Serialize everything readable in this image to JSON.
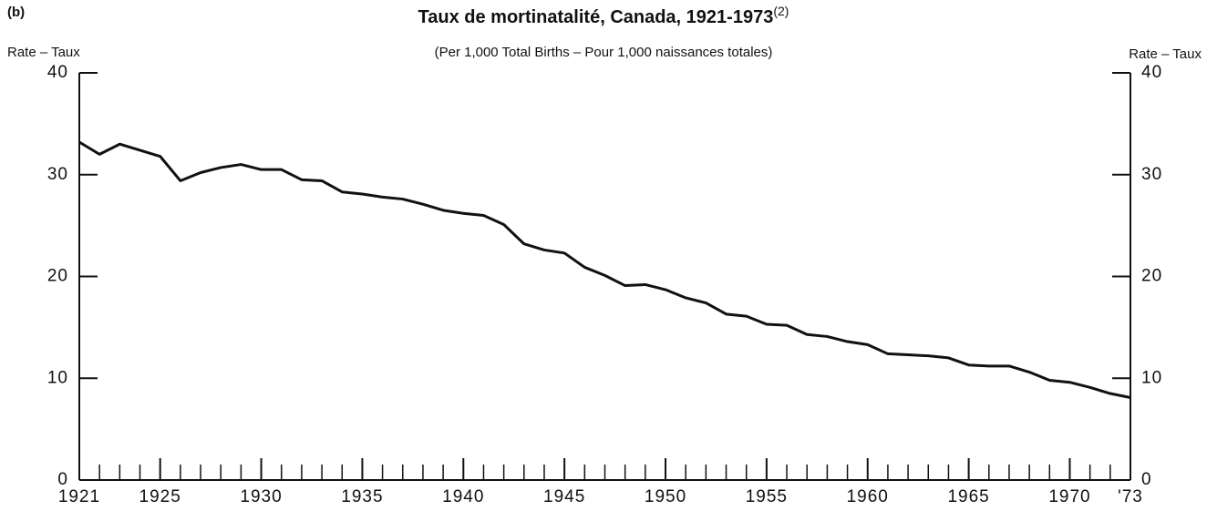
{
  "chart_data": {
    "type": "line",
    "panel": "(b)",
    "title": "Taux de mortinatalité, Canada, 1921-1973",
    "title_note": "(2)",
    "subtitle": "(Per 1,000 Total Births – Pour 1,000 naissances totales)",
    "y_label": "Rate – Taux",
    "y2_label": "Rate – Taux",
    "x": [
      1921,
      1922,
      1923,
      1924,
      1925,
      1926,
      1927,
      1928,
      1929,
      1930,
      1931,
      1932,
      1933,
      1934,
      1935,
      1936,
      1937,
      1938,
      1939,
      1940,
      1941,
      1942,
      1943,
      1944,
      1945,
      1946,
      1947,
      1948,
      1949,
      1950,
      1951,
      1952,
      1953,
      1954,
      1955,
      1956,
      1957,
      1958,
      1959,
      1960,
      1961,
      1962,
      1963,
      1964,
      1965,
      1966,
      1967,
      1968,
      1969,
      1970,
      1971,
      1972,
      1973
    ],
    "series": [
      {
        "color": "#111111",
        "values": [
          33.2,
          32.0,
          33.0,
          32.4,
          31.8,
          29.4,
          30.2,
          30.7,
          31.0,
          30.5,
          30.5,
          29.5,
          29.4,
          28.3,
          28.1,
          27.8,
          27.6,
          27.1,
          26.5,
          26.2,
          26.0,
          25.1,
          23.2,
          22.6,
          22.3,
          20.9,
          20.1,
          19.1,
          19.2,
          18.7,
          17.9,
          17.4,
          16.3,
          16.1,
          15.3,
          15.2,
          14.3,
          14.1,
          13.6,
          13.3,
          12.4,
          12.3,
          12.2,
          12.0,
          11.3,
          11.2,
          11.2,
          10.6,
          9.8,
          9.6,
          9.1,
          8.5,
          8.1
        ]
      }
    ],
    "xlim": [
      1921,
      1973
    ],
    "xticks": [
      1921,
      1925,
      1930,
      1935,
      1940,
      1945,
      1950,
      1955,
      1960,
      1965,
      1970,
      {
        "value": 1973,
        "label": "'73"
      }
    ],
    "ylim": [
      0,
      40
    ],
    "yticks": [
      0,
      10,
      20,
      30,
      40
    ],
    "y2lim": [
      0,
      40
    ],
    "y2ticks": [
      0,
      10,
      20,
      30,
      40
    ]
  }
}
